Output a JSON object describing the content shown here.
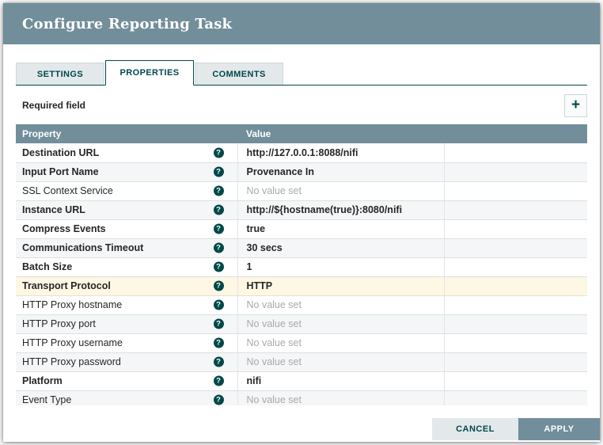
{
  "dialog": {
    "title": "Configure Reporting Task",
    "tabs": [
      {
        "label": "SETTINGS",
        "active": false
      },
      {
        "label": "PROPERTIES",
        "active": true
      },
      {
        "label": "COMMENTS",
        "active": false
      }
    ],
    "required_field_label": "Required field",
    "add_button_icon": "plus-icon",
    "add_button_glyph": "+",
    "help_icon_glyph": "?",
    "table": {
      "columns": [
        "Property",
        "Value"
      ],
      "no_value_text": "No value set",
      "rows": [
        {
          "property": "Destination URL",
          "required": true,
          "set": true,
          "value": "http://127.0.0.1:8088/nifi",
          "highlighted": false
        },
        {
          "property": "Input Port Name",
          "required": true,
          "set": true,
          "value": "Provenance In",
          "highlighted": false
        },
        {
          "property": "SSL Context Service",
          "required": false,
          "set": false,
          "value": "",
          "highlighted": false
        },
        {
          "property": "Instance URL",
          "required": true,
          "set": true,
          "value": "http://${hostname(true)}:8080/nifi",
          "highlighted": false
        },
        {
          "property": "Compress Events",
          "required": true,
          "set": true,
          "value": "true",
          "highlighted": false
        },
        {
          "property": "Communications Timeout",
          "required": true,
          "set": true,
          "value": "30 secs",
          "highlighted": false
        },
        {
          "property": "Batch Size",
          "required": true,
          "set": true,
          "value": "1",
          "highlighted": false
        },
        {
          "property": "Transport Protocol",
          "required": true,
          "set": true,
          "value": "HTTP",
          "highlighted": true
        },
        {
          "property": "HTTP Proxy hostname",
          "required": false,
          "set": false,
          "value": "",
          "highlighted": false
        },
        {
          "property": "HTTP Proxy port",
          "required": false,
          "set": false,
          "value": "",
          "highlighted": false
        },
        {
          "property": "HTTP Proxy username",
          "required": false,
          "set": false,
          "value": "",
          "highlighted": false
        },
        {
          "property": "HTTP Proxy password",
          "required": false,
          "set": false,
          "value": "",
          "highlighted": false
        },
        {
          "property": "Platform",
          "required": true,
          "set": true,
          "value": "nifi",
          "highlighted": false
        },
        {
          "property": "Event Type",
          "required": false,
          "set": false,
          "value": "",
          "highlighted": false
        }
      ]
    },
    "footer": {
      "cancel_label": "CANCEL",
      "apply_label": "APPLY"
    },
    "colors": {
      "header_bg": "#728E9B",
      "accent_teal": "#004849",
      "tab_inactive_bg": "#E3E8EB",
      "row_alt_bg": "#F4F6F7",
      "highlight_row_bg": "#FDF7E3",
      "no_value_text_color": "#A9A9A9"
    }
  }
}
